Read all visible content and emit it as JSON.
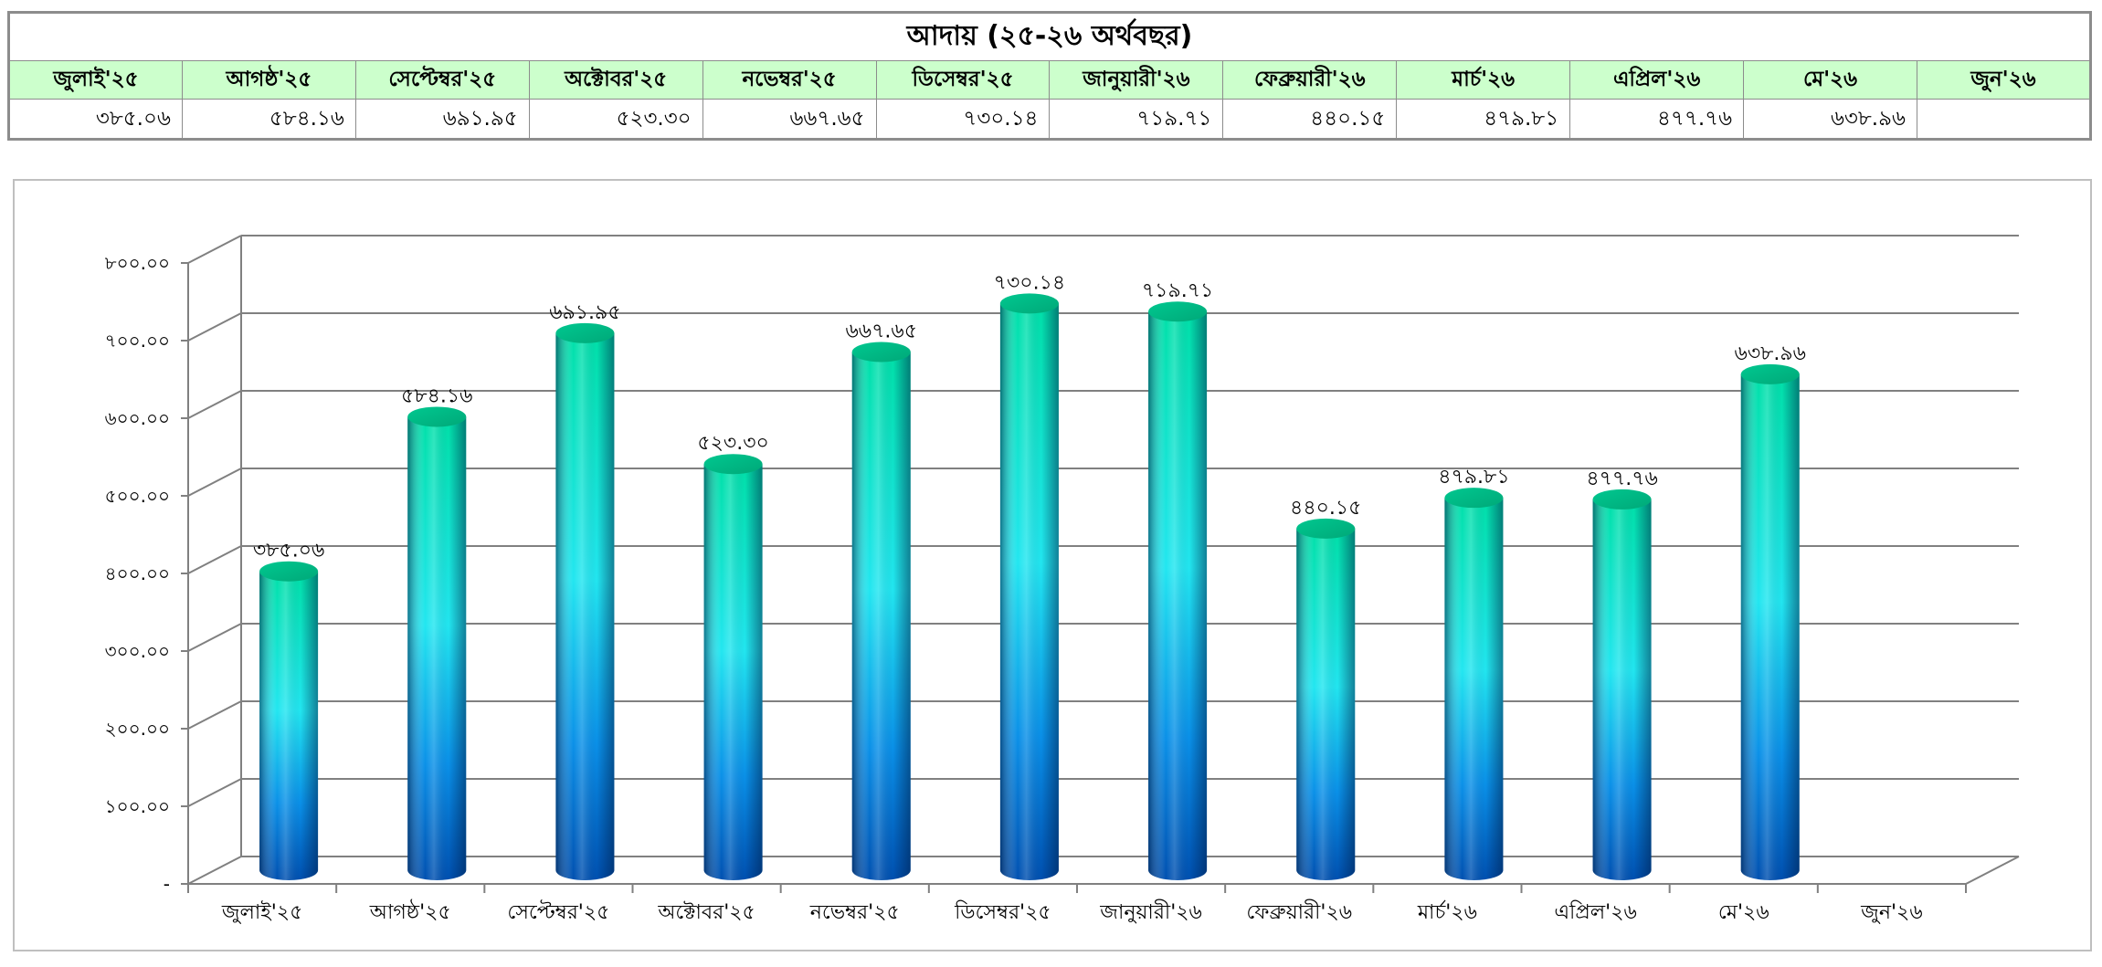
{
  "table": {
    "title": "আদায়  (২৫-২৬ অর্থবছর)",
    "months": [
      "জুলাই'২৫",
      "আগষ্ঠ'২৫",
      "সেপ্টেম্বর'২৫",
      "অক্টোবর'২৫",
      "নভেম্বর'২৫",
      "ডিসেম্বর'২৫",
      "জানুয়ারী'২৬",
      "ফেব্রুয়ারী'২৬",
      "মার্চ'২৬",
      "এপ্রিল'২৬",
      "মে'২৬",
      "জুন'২৬"
    ],
    "values": [
      "৩৮৫.০৬",
      "৫৮৪.১৬",
      "৬৯১.৯৫",
      "৫২৩.৩০",
      "৬৬৭.৬৫",
      "৭৩০.১৪",
      "৭১৯.৭১",
      "৪৪০.১৫",
      "৪৭৯.৮১",
      "৪৭৭.৭৬",
      "৬৩৮.৯৬",
      ""
    ]
  },
  "chart_data": {
    "type": "bar",
    "style": "3d-cylinder",
    "title": "",
    "xlabel": "",
    "ylabel": "",
    "categories": [
      "জুলাই'২৫",
      "আগষ্ঠ'২৫",
      "সেপ্টেম্বর'২৫",
      "অক্টোবর'২৫",
      "নভেম্বর'২৫",
      "ডিসেম্বর'২৫",
      "জানুয়ারী'২৬",
      "ফেব্রুয়ারী'২৬",
      "মার্চ'২৬",
      "এপ্রিল'২৬",
      "মে'২৬",
      "জুন'২৬"
    ],
    "values": [
      385.06,
      584.16,
      691.95,
      523.3,
      667.65,
      730.14,
      719.71,
      440.15,
      479.81,
      477.76,
      638.96,
      null
    ],
    "data_labels": [
      "৩৮৫.০৬",
      "৫৮৪.১৬",
      "৬৯১.৯৫",
      "৫২৩.৩০",
      "৬৬৭.৬৫",
      "৭৩০.১৪",
      "৭১৯.৭১",
      "৪৪০.১৫",
      "৪৭৯.৮১",
      "৪৭৭.৭৬",
      "৬৩৮.৯৬",
      ""
    ],
    "ylim": [
      0,
      800
    ],
    "yticks": [
      0,
      100,
      200,
      300,
      400,
      500,
      600,
      700,
      800
    ],
    "ytick_labels": [
      "-",
      "১০০.০০",
      "২০০.০০",
      "৩০০.০০",
      "৪০০.০০",
      "৫০০.০০",
      "৬০০.০০",
      "৭০০.০০",
      "৮০০.০০"
    ],
    "grid": true,
    "legend": "none",
    "colors": {
      "bar_top": "#00e0a8",
      "bar_mid": "#22e6f0",
      "bar_bottom": "#0050b0",
      "gridline": "#808080",
      "header_fill": "#ccffcc"
    }
  }
}
